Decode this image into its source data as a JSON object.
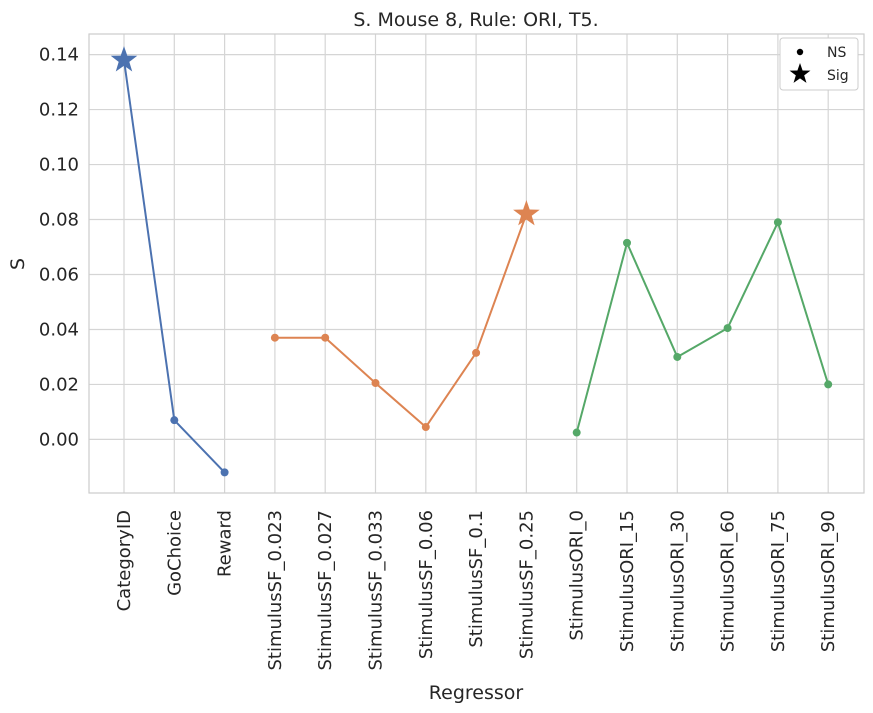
{
  "chart_data": {
    "type": "line",
    "title": "S. Mouse 8, Rule: ORI, T5.",
    "xlabel": "Regressor",
    "ylabel": "S",
    "categories": [
      "CategoryID",
      "GoChoice",
      "Reward",
      "StimulusSF_0.023",
      "StimulusSF_0.027",
      "StimulusSF_0.033",
      "StimulusSF_0.06",
      "StimulusSF_0.1",
      "StimulusSF_0.25",
      "StimulusORI_0",
      "StimulusORI_15",
      "StimulusORI_30",
      "StimulusORI_60",
      "StimulusORI_75",
      "StimulusORI_90"
    ],
    "ylim": [
      -0.0195,
      0.1475
    ],
    "yticks": [
      0.0,
      0.02,
      0.04,
      0.06,
      0.08,
      0.1,
      0.12,
      0.14
    ],
    "ytick_labels": [
      "0.00",
      "0.02",
      "0.04",
      "0.06",
      "0.08",
      "0.10",
      "0.12",
      "0.14"
    ],
    "grid": true,
    "series": [
      {
        "color": "#4c72b0",
        "x": [
          "CategoryID",
          "GoChoice",
          "Reward"
        ],
        "values": [
          0.138,
          0.007,
          -0.012
        ],
        "sig": [
          true,
          false,
          false
        ]
      },
      {
        "color": "#dd8452",
        "x": [
          "StimulusSF_0.023",
          "StimulusSF_0.027",
          "StimulusSF_0.033",
          "StimulusSF_0.06",
          "StimulusSF_0.1",
          "StimulusSF_0.25"
        ],
        "values": [
          0.037,
          0.037,
          0.0205,
          0.0045,
          0.0315,
          0.082
        ],
        "sig": [
          false,
          false,
          false,
          false,
          false,
          true
        ]
      },
      {
        "color": "#55a868",
        "x": [
          "StimulusORI_0",
          "StimulusORI_15",
          "StimulusORI_30",
          "StimulusORI_60",
          "StimulusORI_75",
          "StimulusORI_90"
        ],
        "values": [
          0.0025,
          0.0715,
          0.03,
          0.0405,
          0.079,
          0.02
        ],
        "sig": [
          false,
          false,
          false,
          false,
          false,
          false
        ]
      }
    ],
    "legend": {
      "position": "top-right",
      "entries": [
        {
          "label": "NS",
          "marker": "dot"
        },
        {
          "label": "Sig",
          "marker": "star"
        }
      ]
    }
  }
}
